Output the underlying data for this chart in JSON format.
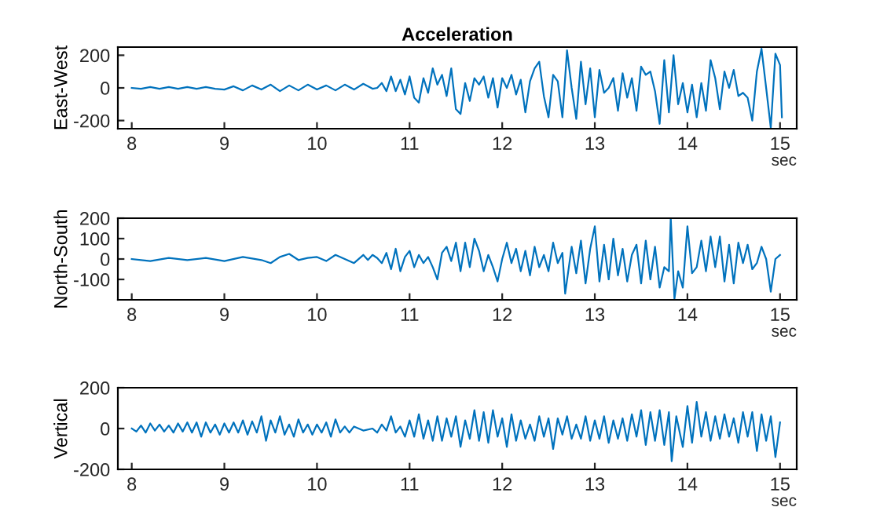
{
  "chart_data": [
    {
      "type": "line",
      "title": "Acceleration",
      "ylabel": "East-West",
      "xlabel": "sec",
      "color": "#0072bd",
      "xlim": [
        7.85,
        15.18
      ],
      "xticks": [
        8,
        9,
        10,
        11,
        12,
        13,
        14,
        15
      ],
      "ylim": [
        -250,
        250
      ],
      "yticks": [
        -200,
        0,
        200
      ],
      "x": [
        8.0,
        8.1,
        8.2,
        8.3,
        8.4,
        8.5,
        8.6,
        8.7,
        8.8,
        8.9,
        9.0,
        9.1,
        9.2,
        9.3,
        9.4,
        9.5,
        9.6,
        9.7,
        9.8,
        9.9,
        10.0,
        10.1,
        10.2,
        10.3,
        10.4,
        10.5,
        10.6,
        10.65,
        10.7,
        10.75,
        10.8,
        10.85,
        10.9,
        10.95,
        11.0,
        11.05,
        11.1,
        11.15,
        11.2,
        11.25,
        11.3,
        11.35,
        11.4,
        11.45,
        11.5,
        11.55,
        11.6,
        11.65,
        11.7,
        11.75,
        11.8,
        11.85,
        11.9,
        11.95,
        12.0,
        12.05,
        12.1,
        12.15,
        12.2,
        12.25,
        12.3,
        12.35,
        12.4,
        12.45,
        12.5,
        12.55,
        12.6,
        12.65,
        12.7,
        12.75,
        12.8,
        12.85,
        12.9,
        12.95,
        13.0,
        13.05,
        13.1,
        13.15,
        13.2,
        13.25,
        13.3,
        13.35,
        13.4,
        13.45,
        13.5,
        13.55,
        13.6,
        13.65,
        13.7,
        13.75,
        13.8,
        13.85,
        13.9,
        13.95,
        14.0,
        14.05,
        14.1,
        14.15,
        14.2,
        14.25,
        14.3,
        14.35,
        14.4,
        14.45,
        14.5,
        14.55,
        14.6,
        14.65,
        14.7,
        14.75,
        14.8,
        14.85,
        14.9,
        14.95,
        15.0,
        15.02
      ],
      "values": [
        0,
        -5,
        5,
        -5,
        5,
        -5,
        5,
        -5,
        5,
        -5,
        -10,
        10,
        -15,
        15,
        -10,
        20,
        -20,
        15,
        -15,
        20,
        -10,
        15,
        -15,
        20,
        -10,
        25,
        -5,
        0,
        30,
        -20,
        70,
        -20,
        50,
        -40,
        70,
        -60,
        -90,
        60,
        -30,
        120,
        20,
        80,
        -50,
        120,
        -130,
        -160,
        30,
        -80,
        60,
        20,
        70,
        -60,
        60,
        -120,
        60,
        0,
        80,
        -40,
        50,
        -150,
        40,
        120,
        160,
        -50,
        -180,
        80,
        40,
        -180,
        230,
        0,
        -190,
        160,
        -100,
        120,
        -180,
        110,
        -30,
        0,
        60,
        -140,
        90,
        -60,
        60,
        -140,
        130,
        80,
        100,
        -20,
        -220,
        170,
        -150,
        200,
        -100,
        30,
        -150,
        20,
        -180,
        30,
        -140,
        170,
        60,
        -130,
        100,
        0,
        110,
        -50,
        -30,
        -60,
        -200,
        100,
        240,
        0,
        -245,
        210,
        140,
        -180
      ]
    },
    {
      "type": "line",
      "ylabel": "North-South",
      "xlabel": "sec",
      "color": "#0072bd",
      "xlim": [
        7.85,
        15.18
      ],
      "xticks": [
        8,
        9,
        10,
        11,
        12,
        13,
        14,
        15
      ],
      "ylim": [
        -200,
        200
      ],
      "yticks": [
        -100,
        0,
        100,
        200
      ],
      "x": [
        8.0,
        8.2,
        8.4,
        8.6,
        8.8,
        9.0,
        9.2,
        9.4,
        9.5,
        9.6,
        9.7,
        9.8,
        9.9,
        10.0,
        10.1,
        10.2,
        10.3,
        10.4,
        10.5,
        10.55,
        10.6,
        10.65,
        10.7,
        10.75,
        10.8,
        10.85,
        10.9,
        10.95,
        11.0,
        11.05,
        11.1,
        11.15,
        11.2,
        11.25,
        11.3,
        11.35,
        11.4,
        11.45,
        11.5,
        11.55,
        11.6,
        11.65,
        11.7,
        11.75,
        11.8,
        11.85,
        11.9,
        11.95,
        12.0,
        12.05,
        12.1,
        12.15,
        12.2,
        12.25,
        12.3,
        12.35,
        12.4,
        12.45,
        12.5,
        12.55,
        12.6,
        12.65,
        12.68,
        12.75,
        12.8,
        12.85,
        12.9,
        12.95,
        13.0,
        13.05,
        13.1,
        13.15,
        13.2,
        13.25,
        13.3,
        13.35,
        13.4,
        13.45,
        13.5,
        13.55,
        13.6,
        13.65,
        13.7,
        13.75,
        13.8,
        13.82,
        13.86,
        13.9,
        13.95,
        14.0,
        14.05,
        14.1,
        14.15,
        14.2,
        14.25,
        14.3,
        14.35,
        14.4,
        14.45,
        14.5,
        14.55,
        14.6,
        14.65,
        14.7,
        14.75,
        14.8,
        14.85,
        14.9,
        14.95,
        15.0
      ],
      "values": [
        0,
        -10,
        5,
        -5,
        5,
        -10,
        10,
        -5,
        -20,
        10,
        25,
        -5,
        5,
        10,
        -10,
        20,
        0,
        -20,
        20,
        -5,
        20,
        5,
        -20,
        30,
        -50,
        50,
        -60,
        10,
        40,
        -40,
        20,
        -20,
        10,
        -40,
        -100,
        30,
        60,
        -10,
        80,
        -60,
        80,
        -40,
        100,
        40,
        -60,
        20,
        -40,
        -110,
        0,
        80,
        -20,
        50,
        -60,
        40,
        -80,
        60,
        -40,
        20,
        -60,
        80,
        -20,
        30,
        -170,
        60,
        -70,
        90,
        -120,
        50,
        160,
        -110,
        70,
        -100,
        100,
        -80,
        50,
        -110,
        20,
        70,
        -120,
        90,
        -100,
        60,
        -140,
        -40,
        -60,
        200,
        -195,
        -60,
        -140,
        160,
        -70,
        -40,
        90,
        -60,
        110,
        -40,
        110,
        -110,
        70,
        -120,
        80,
        -20,
        70,
        -50,
        -20,
        60,
        0,
        -160,
        0,
        20
      ]
    },
    {
      "type": "line",
      "ylabel": "Vertical",
      "xlabel": "sec",
      "color": "#0072bd",
      "xlim": [
        7.85,
        15.18
      ],
      "xticks": [
        8,
        9,
        10,
        11,
        12,
        13,
        14,
        15
      ],
      "ylim": [
        -200,
        200
      ],
      "yticks": [
        -200,
        0,
        200
      ],
      "x": [
        8.0,
        8.05,
        8.1,
        8.15,
        8.2,
        8.25,
        8.3,
        8.35,
        8.4,
        8.45,
        8.5,
        8.55,
        8.6,
        8.65,
        8.7,
        8.75,
        8.8,
        8.85,
        8.9,
        8.95,
        9.0,
        9.05,
        9.1,
        9.15,
        9.2,
        9.25,
        9.3,
        9.35,
        9.4,
        9.45,
        9.5,
        9.55,
        9.6,
        9.65,
        9.7,
        9.75,
        9.8,
        9.85,
        9.9,
        9.95,
        10.0,
        10.05,
        10.1,
        10.15,
        10.2,
        10.25,
        10.3,
        10.35,
        10.4,
        10.5,
        10.6,
        10.65,
        10.7,
        10.75,
        10.8,
        10.85,
        10.9,
        10.95,
        11.0,
        11.05,
        11.1,
        11.15,
        11.2,
        11.25,
        11.3,
        11.35,
        11.4,
        11.45,
        11.5,
        11.55,
        11.6,
        11.65,
        11.7,
        11.75,
        11.8,
        11.85,
        11.9,
        11.95,
        12.0,
        12.05,
        12.1,
        12.15,
        12.2,
        12.25,
        12.3,
        12.35,
        12.4,
        12.45,
        12.5,
        12.55,
        12.6,
        12.65,
        12.7,
        12.75,
        12.8,
        12.85,
        12.9,
        12.95,
        13.0,
        13.05,
        13.1,
        13.15,
        13.2,
        13.25,
        13.3,
        13.35,
        13.4,
        13.45,
        13.5,
        13.55,
        13.6,
        13.65,
        13.7,
        13.75,
        13.8,
        13.83,
        13.88,
        13.95,
        14.0,
        14.05,
        14.1,
        14.15,
        14.2,
        14.25,
        14.3,
        14.35,
        14.4,
        14.45,
        14.5,
        14.55,
        14.6,
        14.65,
        14.7,
        14.75,
        14.8,
        14.85,
        14.9,
        14.95,
        15.0
      ],
      "values": [
        0,
        -15,
        15,
        -20,
        25,
        -10,
        20,
        -15,
        15,
        -20,
        25,
        -15,
        30,
        -20,
        30,
        -40,
        30,
        -20,
        20,
        -30,
        25,
        -20,
        30,
        -20,
        40,
        -30,
        35,
        -20,
        60,
        -60,
        40,
        -20,
        60,
        -30,
        20,
        -40,
        45,
        -20,
        20,
        -30,
        20,
        -20,
        30,
        -40,
        45,
        -20,
        10,
        -20,
        10,
        -10,
        0,
        -20,
        20,
        -10,
        60,
        -20,
        10,
        -40,
        40,
        -40,
        70,
        -50,
        40,
        -60,
        60,
        -60,
        50,
        -40,
        60,
        -90,
        40,
        -50,
        90,
        -60,
        80,
        -70,
        90,
        -40,
        50,
        -90,
        70,
        -60,
        40,
        -50,
        20,
        -60,
        60,
        -40,
        50,
        -100,
        50,
        -30,
        60,
        -50,
        20,
        -50,
        60,
        -60,
        40,
        -50,
        60,
        -70,
        40,
        -50,
        50,
        -60,
        70,
        -40,
        90,
        -80,
        80,
        -60,
        90,
        -80,
        80,
        -160,
        60,
        -90,
        110,
        -70,
        130,
        -40,
        80,
        -60,
        60,
        -50,
        70,
        -40,
        50,
        -70,
        80,
        -40,
        80,
        -110,
        70,
        -60,
        60,
        -140,
        30
      ]
    }
  ]
}
